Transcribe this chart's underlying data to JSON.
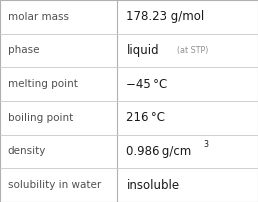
{
  "rows": [
    {
      "label": "molar mass",
      "value": "178.23 g/mol",
      "value_extra": null,
      "superscript": false
    },
    {
      "label": "phase",
      "value": "liquid",
      "value_extra": "(at STP)",
      "superscript": false
    },
    {
      "label": "melting point",
      "value": "−45 °C",
      "value_extra": null,
      "superscript": false
    },
    {
      "label": "boiling point",
      "value": "216 °C",
      "value_extra": null,
      "superscript": false
    },
    {
      "label": "density",
      "value": "0.986 g/cm",
      "value_extra": "3",
      "superscript": true
    },
    {
      "label": "solubility in water",
      "value": "insoluble",
      "value_extra": null,
      "superscript": false
    }
  ],
  "bg_color": "#ffffff",
  "border_color": "#b0b0b0",
  "label_color": "#505050",
  "value_color": "#1a1a1a",
  "extra_color": "#909090",
  "divider_color": "#c8c8c8",
  "col_split": 0.455,
  "label_fontsize": 7.5,
  "value_fontsize": 8.5,
  "extra_fontsize": 5.8,
  "super_fontsize": 5.8
}
